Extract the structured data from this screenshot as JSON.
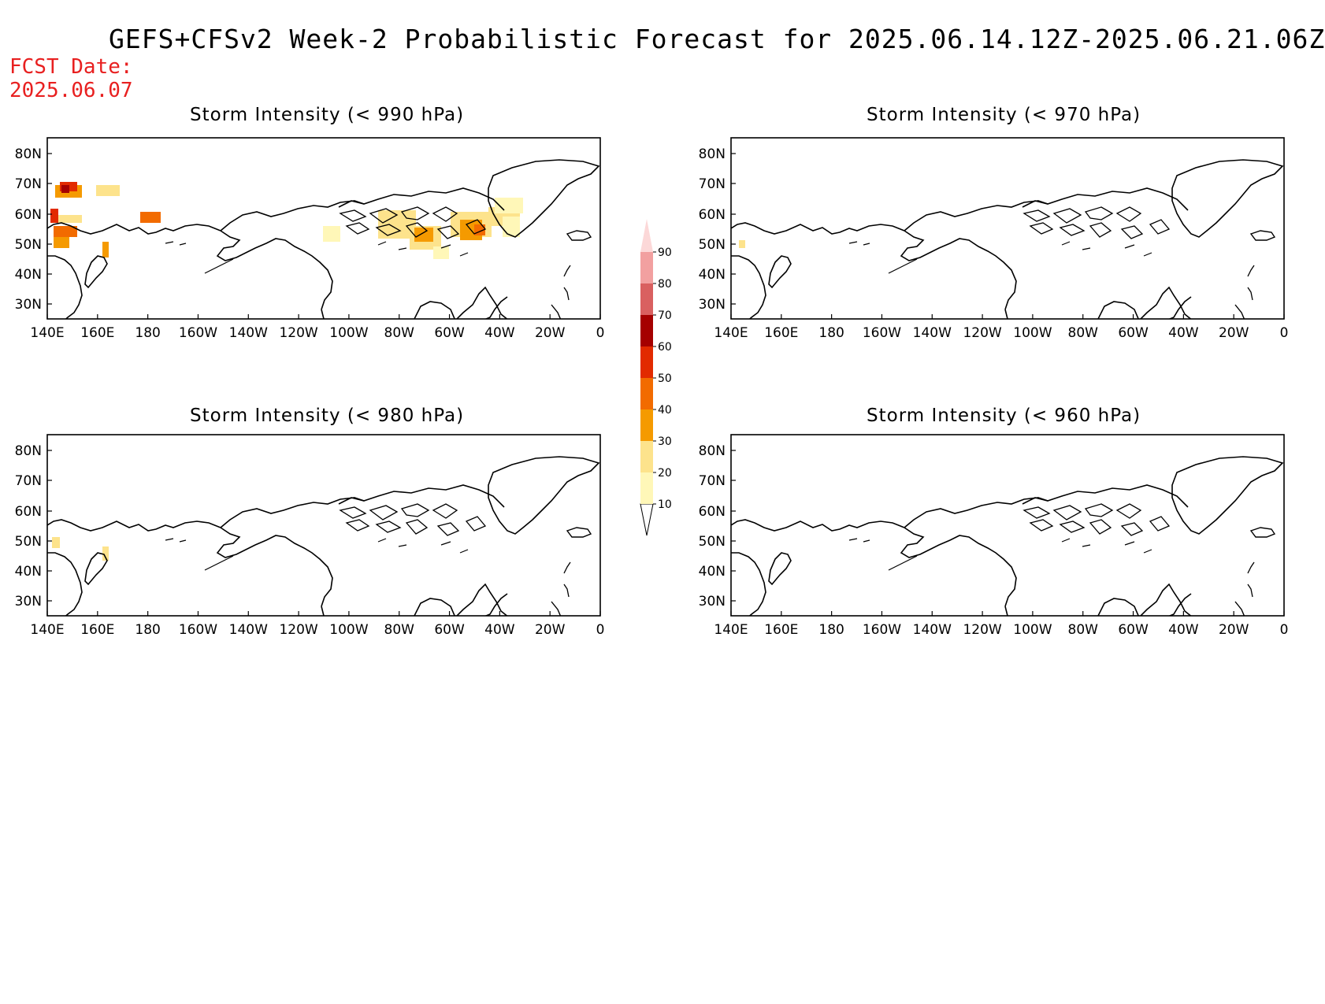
{
  "title": "GEFS+CFSv2 Week-2 Probabilistic Forecast for 2025.06.14.12Z-2025.06.21.06Z",
  "fcst_label": "FCST Date:",
  "fcst_date": "2025.06.07",
  "panels": [
    {
      "title": "Storm Intensity (< 990 hPa)"
    },
    {
      "title": "Storm Intensity (< 970 hPa)"
    },
    {
      "title": "Storm Intensity (< 980 hPa)"
    },
    {
      "title": "Storm Intensity (< 960 hPa)"
    }
  ],
  "axes": {
    "lon_labels": [
      "140E",
      "160E",
      "180",
      "160W",
      "140W",
      "120W",
      "100W",
      "80W",
      "60W",
      "40W",
      "20W",
      "0"
    ],
    "lat_labels": [
      "80N",
      "70N",
      "60N",
      "50N",
      "40N",
      "30N"
    ]
  },
  "colorbar": {
    "labels": [
      "10",
      "20",
      "30",
      "40",
      "50",
      "60",
      "70",
      "80",
      "90"
    ],
    "colors": [
      "#fff7b8",
      "#fde38c",
      "#f59a00",
      "#f26b00",
      "#e22a00",
      "#a50000",
      "#d96060",
      "#f2a0a0",
      "#fcd8d8"
    ]
  }
}
